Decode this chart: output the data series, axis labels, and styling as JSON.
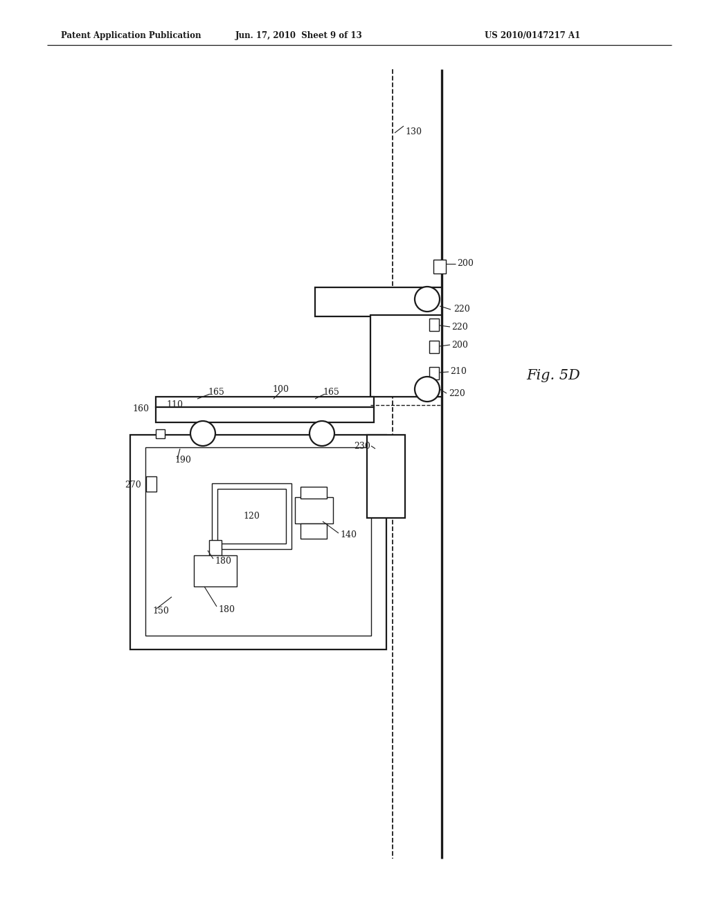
{
  "bg_color": "#ffffff",
  "lc": "#1a1a1a",
  "header_left": "Patent Application Publication",
  "header_mid": "Jun. 17, 2010  Sheet 9 of 13",
  "header_right": "US 2010/0147217 A1",
  "fig_label": "Fig. 5D",
  "lw_thin": 1.0,
  "lw_med": 1.6,
  "lw_thick": 2.4,
  "font_size": 9,
  "header_font_size": 8.5,
  "fig_font_size": 15
}
